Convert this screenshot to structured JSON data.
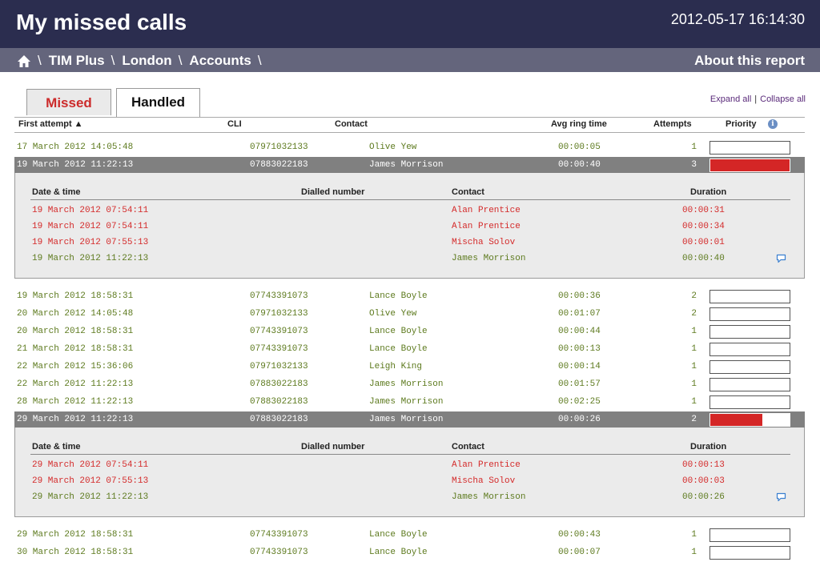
{
  "header": {
    "title": "My missed calls",
    "timestamp": "2012-05-17 16:14:30"
  },
  "breadcrumb": {
    "items": [
      "TIM Plus",
      "London",
      "Accounts"
    ],
    "separator": "\\",
    "about": "About this report"
  },
  "tabs": {
    "missed": "Missed",
    "handled": "Handled",
    "active": "Handled"
  },
  "actions": {
    "expand_all": "Expand all",
    "collapse_all": "Collapse all",
    "divider": "|"
  },
  "columns": {
    "first_attempt": "First attempt ▲",
    "cli": "CLI",
    "contact": "Contact",
    "avg_ring": "Avg ring time",
    "attempts": "Attempts",
    "priority": "Priority"
  },
  "detail_columns": {
    "datetime": "Date & time",
    "dialled": "Dialled number",
    "contact": "Contact",
    "duration": "Duration"
  },
  "colors": {
    "header_bg": "#2b2d4f",
    "crumb_bg": "#64657c",
    "missed_text": "#d42a2a",
    "handled_text": "#5d7a1e",
    "priority_fill": "#d42626",
    "selected_row": "#808080"
  },
  "rows": [
    {
      "date": "17 March 2012 14:05:48",
      "cli": "07971032133",
      "contact": "Olive Yew",
      "ring": "00:00:05",
      "attempts": "1",
      "priority": 0
    },
    {
      "date": "19 March 2012 11:22:13",
      "cli": "07883022183",
      "contact": "James Morrison",
      "ring": "00:00:40",
      "attempts": "3",
      "priority": 1.0,
      "selected": true,
      "details": [
        {
          "date": "19 March 2012 07:54:11",
          "contact": "Alan Prentice",
          "duration": "00:00:31",
          "status": "missed"
        },
        {
          "date": "19 March 2012 07:54:11",
          "contact": "Alan Prentice",
          "duration": "00:00:34",
          "status": "missed"
        },
        {
          "date": "19 March 2012 07:55:13",
          "contact": "Mischa Solov",
          "duration": "00:00:01",
          "status": "missed"
        },
        {
          "date": "19 March 2012 11:22:13",
          "contact": "James Morrison",
          "duration": "00:00:40",
          "status": "handled",
          "comment": true
        }
      ]
    },
    {
      "date": "19 March 2012 18:58:31",
      "cli": "07743391073",
      "contact": "Lance Boyle",
      "ring": "00:00:36",
      "attempts": "2",
      "priority": 0
    },
    {
      "date": "20 March 2012 14:05:48",
      "cli": "07971032133",
      "contact": "Olive Yew",
      "ring": "00:01:07",
      "attempts": "2",
      "priority": 0
    },
    {
      "date": "20 March 2012 18:58:31",
      "cli": "07743391073",
      "contact": "Lance Boyle",
      "ring": "00:00:44",
      "attempts": "1",
      "priority": 0
    },
    {
      "date": "21 March 2012 18:58:31",
      "cli": "07743391073",
      "contact": "Lance Boyle",
      "ring": "00:00:13",
      "attempts": "1",
      "priority": 0
    },
    {
      "date": "22 March 2012 15:36:06",
      "cli": "07971032133",
      "contact": "Leigh King",
      "ring": "00:00:14",
      "attempts": "1",
      "priority": 0
    },
    {
      "date": "22 March 2012 11:22:13",
      "cli": "07883022183",
      "contact": "James Morrison",
      "ring": "00:01:57",
      "attempts": "1",
      "priority": 0
    },
    {
      "date": "28 March 2012 11:22:13",
      "cli": "07883022183",
      "contact": "James Morrison",
      "ring": "00:02:25",
      "attempts": "1",
      "priority": 0
    },
    {
      "date": "29 March 2012 11:22:13",
      "cli": "07883022183",
      "contact": "James Morrison",
      "ring": "00:00:26",
      "attempts": "2",
      "priority": 0.66,
      "selected": true,
      "details": [
        {
          "date": "29 March 2012 07:54:11",
          "contact": "Alan Prentice",
          "duration": "00:00:13",
          "status": "missed"
        },
        {
          "date": "29 March 2012 07:55:13",
          "contact": "Mischa Solov",
          "duration": "00:00:03",
          "status": "missed"
        },
        {
          "date": "29 March 2012 11:22:13",
          "contact": "James Morrison",
          "duration": "00:00:26",
          "status": "handled",
          "comment": true
        }
      ]
    },
    {
      "date": "29 March 2012 18:58:31",
      "cli": "07743391073",
      "contact": "Lance Boyle",
      "ring": "00:00:43",
      "attempts": "1",
      "priority": 0
    },
    {
      "date": "30 March 2012 18:58:31",
      "cli": "07743391073",
      "contact": "Lance Boyle",
      "ring": "00:00:07",
      "attempts": "1",
      "priority": 0
    }
  ]
}
